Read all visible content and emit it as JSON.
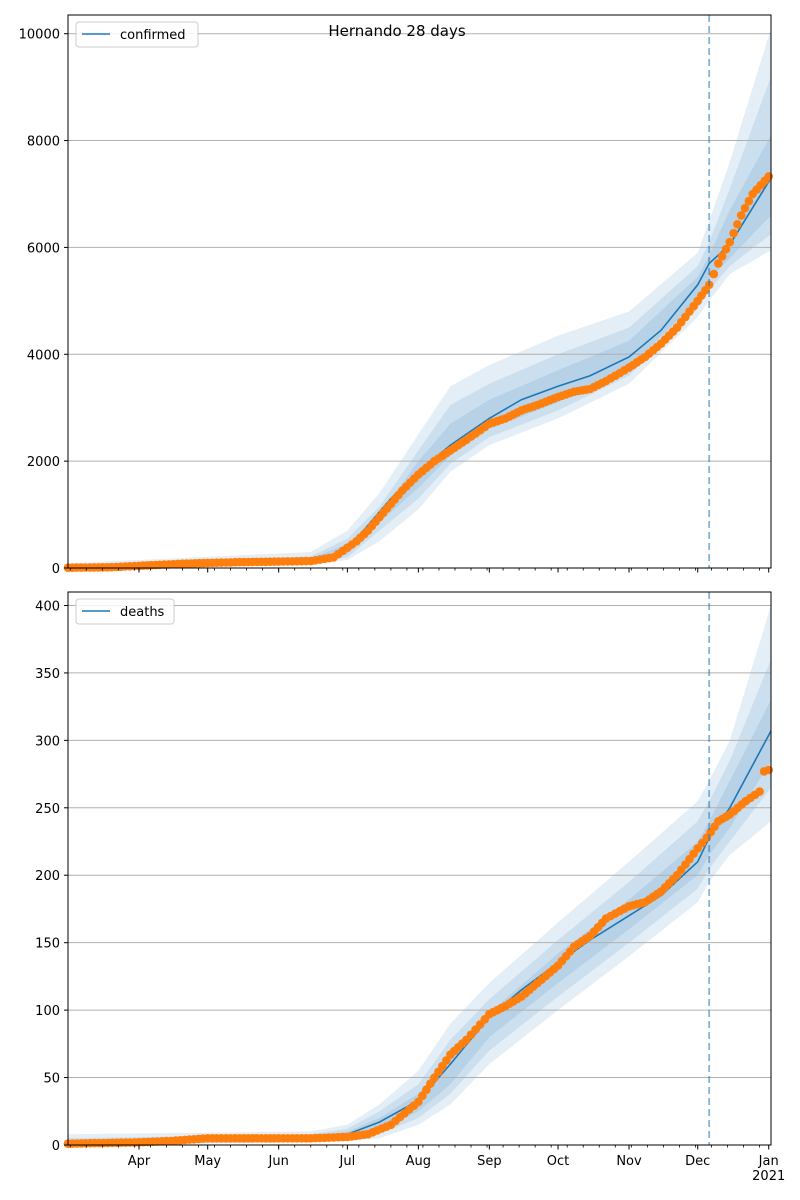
{
  "figure": {
    "title": "Hernando 28 days"
  },
  "colors": {
    "model": "#1f77b4",
    "observed": "#ff7f0e",
    "band": "#1f77b4",
    "grid": "#b0b0b0"
  },
  "chart_data": [
    {
      "type": "line",
      "legend": "confirmed",
      "legend_position": "top-left",
      "x_tick_labels": [],
      "xlim": [
        "2020-03-01",
        "2021-01-02"
      ],
      "ylim": [
        0,
        10350
      ],
      "y_ticks": [
        0,
        2000,
        4000,
        6000,
        8000,
        10000
      ],
      "grid": "y",
      "forecast_start": "2020-12-06",
      "model_line": {
        "x": [
          "2020-03-01",
          "2020-04-01",
          "2020-05-01",
          "2020-06-01",
          "2020-06-20",
          "2020-07-01",
          "2020-07-10",
          "2020-07-20",
          "2020-08-01",
          "2020-08-15",
          "2020-09-01",
          "2020-09-15",
          "2020-10-01",
          "2020-10-15",
          "2020-11-01",
          "2020-11-15",
          "2020-12-01",
          "2020-12-06",
          "2020-12-15",
          "2021-01-02"
        ],
        "y": [
          10,
          40,
          90,
          120,
          150,
          350,
          800,
          1300,
          1800,
          2300,
          2800,
          3150,
          3400,
          3600,
          3950,
          4450,
          5300,
          5700,
          6050,
          7300
        ]
      },
      "bands": [
        {
          "x": [
            "2020-03-01",
            "2020-06-15",
            "2020-07-01",
            "2020-07-15",
            "2020-08-01",
            "2020-08-15",
            "2020-09-01",
            "2020-10-01",
            "2020-11-01",
            "2020-12-01",
            "2020-12-06",
            "2020-12-15",
            "2021-01-02"
          ],
          "lower": [
            0,
            60,
            150,
            500,
            1100,
            1800,
            2300,
            2800,
            3450,
            4700,
            5000,
            5500,
            5950
          ],
          "upper": [
            90,
            300,
            700,
            1400,
            2500,
            3400,
            3800,
            4350,
            4800,
            5900,
            6500,
            7600,
            10100
          ]
        },
        {
          "x": [
            "2020-03-01",
            "2020-06-15",
            "2020-07-01",
            "2020-07-15",
            "2020-08-01",
            "2020-08-15",
            "2020-09-01",
            "2020-10-01",
            "2020-11-01",
            "2020-12-01",
            "2020-12-06",
            "2020-12-15",
            "2021-01-02"
          ],
          "lower": [
            0,
            80,
            200,
            700,
            1300,
            1950,
            2450,
            2950,
            3600,
            4850,
            5200,
            5650,
            6250
          ],
          "upper": [
            60,
            220,
            550,
            1150,
            2200,
            3050,
            3450,
            4000,
            4500,
            5650,
            6100,
            7100,
            9200
          ]
        },
        {
          "x": [
            "2020-03-01",
            "2020-06-15",
            "2020-07-01",
            "2020-07-15",
            "2020-08-01",
            "2020-08-15",
            "2020-09-01",
            "2020-10-01",
            "2020-11-01",
            "2020-12-01",
            "2020-12-06",
            "2020-12-15",
            "2021-01-02"
          ],
          "lower": [
            0,
            100,
            260,
            850,
            1500,
            2100,
            2600,
            3100,
            3750,
            5000,
            5400,
            5800,
            6600
          ],
          "upper": [
            40,
            180,
            450,
            1000,
            2000,
            2700,
            3150,
            3700,
            4250,
            5450,
            5850,
            6700,
            8100
          ]
        }
      ],
      "observed": {
        "x": [
          "2020-03-01",
          "2020-03-20",
          "2020-04-01",
          "2020-04-10",
          "2020-04-20",
          "2020-05-01",
          "2020-05-15",
          "2020-06-01",
          "2020-06-15",
          "2020-06-25",
          "2020-07-01",
          "2020-07-05",
          "2020-07-10",
          "2020-07-15",
          "2020-07-20",
          "2020-07-25",
          "2020-08-01",
          "2020-08-08",
          "2020-08-15",
          "2020-08-22",
          "2020-09-01",
          "2020-09-08",
          "2020-09-15",
          "2020-09-22",
          "2020-10-01",
          "2020-10-08",
          "2020-10-15",
          "2020-10-22",
          "2020-11-01",
          "2020-11-08",
          "2020-11-15",
          "2020-11-22",
          "2020-12-01",
          "2020-12-06",
          "2020-12-10",
          "2020-12-15",
          "2020-12-20",
          "2020-12-25",
          "2021-01-01"
        ],
        "y": [
          5,
          15,
          40,
          60,
          80,
          95,
          110,
          120,
          130,
          200,
          380,
          500,
          700,
          950,
          1200,
          1450,
          1750,
          2000,
          2200,
          2400,
          2700,
          2800,
          2950,
          3050,
          3200,
          3300,
          3350,
          3500,
          3750,
          3950,
          4200,
          4500,
          5000,
          5300,
          5700,
          6100,
          6600,
          7000,
          7330
        ]
      }
    },
    {
      "type": "line",
      "legend": "deaths",
      "legend_position": "top-left",
      "x_tick_labels": [
        "Apr",
        "May",
        "Jun",
        "Jul",
        "Aug",
        "Sep",
        "Oct",
        "Nov",
        "Dec",
        "Jan\n2021"
      ],
      "xlim": [
        "2020-03-01",
        "2021-01-02"
      ],
      "ylim": [
        0,
        410
      ],
      "y_ticks": [
        0,
        50,
        100,
        150,
        200,
        250,
        300,
        350,
        400
      ],
      "grid": "y",
      "forecast_start": "2020-12-06",
      "model_line": {
        "x": [
          "2020-03-01",
          "2020-04-15",
          "2020-05-15",
          "2020-06-15",
          "2020-07-01",
          "2020-07-15",
          "2020-08-01",
          "2020-08-15",
          "2020-09-01",
          "2020-09-15",
          "2020-10-01",
          "2020-10-15",
          "2020-11-01",
          "2020-11-15",
          "2020-12-01",
          "2020-12-06",
          "2020-12-15",
          "2021-01-02"
        ],
        "y": [
          1,
          3,
          5,
          6,
          8,
          17,
          33,
          60,
          95,
          115,
          135,
          152,
          170,
          185,
          210,
          228,
          250,
          307
        ]
      },
      "bands": [
        {
          "x": [
            "2020-03-01",
            "2020-06-15",
            "2020-07-01",
            "2020-07-15",
            "2020-08-01",
            "2020-08-15",
            "2020-09-01",
            "2020-10-01",
            "2020-11-01",
            "2020-12-01",
            "2020-12-06",
            "2020-12-15",
            "2021-01-02"
          ],
          "lower": [
            0,
            2,
            3,
            5,
            15,
            30,
            60,
            100,
            140,
            180,
            195,
            215,
            240
          ],
          "upper": [
            8,
            10,
            15,
            30,
            55,
            90,
            120,
            165,
            210,
            255,
            270,
            300,
            400
          ]
        },
        {
          "x": [
            "2020-03-01",
            "2020-06-15",
            "2020-07-01",
            "2020-07-15",
            "2020-08-01",
            "2020-08-15",
            "2020-09-01",
            "2020-10-01",
            "2020-11-01",
            "2020-12-01",
            "2020-12-06",
            "2020-12-15",
            "2021-01-02"
          ],
          "lower": [
            0,
            3,
            5,
            8,
            20,
            38,
            70,
            110,
            150,
            190,
            205,
            225,
            265
          ],
          "upper": [
            5,
            8,
            12,
            25,
            45,
            78,
            108,
            152,
            195,
            240,
            255,
            285,
            360
          ]
        },
        {
          "x": [
            "2020-03-01",
            "2020-06-15",
            "2020-07-01",
            "2020-07-15",
            "2020-08-01",
            "2020-08-15",
            "2020-09-01",
            "2020-10-01",
            "2020-11-01",
            "2020-12-01",
            "2020-12-06",
            "2020-12-15",
            "2021-01-02"
          ],
          "lower": [
            0,
            4,
            6,
            11,
            25,
            45,
            80,
            120,
            160,
            200,
            215,
            235,
            285
          ],
          "upper": [
            3,
            6,
            10,
            20,
            38,
            68,
            98,
            142,
            182,
            225,
            240,
            270,
            330
          ]
        }
      ],
      "observed": {
        "x": [
          "2020-03-01",
          "2020-04-01",
          "2020-04-15",
          "2020-05-01",
          "2020-05-15",
          "2020-06-01",
          "2020-06-15",
          "2020-07-01",
          "2020-07-10",
          "2020-07-20",
          "2020-08-01",
          "2020-08-08",
          "2020-08-15",
          "2020-08-22",
          "2020-09-01",
          "2020-09-08",
          "2020-09-15",
          "2020-09-22",
          "2020-10-01",
          "2020-10-08",
          "2020-10-15",
          "2020-10-22",
          "2020-11-01",
          "2020-11-08",
          "2020-11-15",
          "2020-11-22",
          "2020-12-01",
          "2020-12-05",
          "2020-12-10",
          "2020-12-15",
          "2020-12-22",
          "2020-12-28",
          "2020-12-30",
          "2021-01-01"
        ],
        "y": [
          1,
          2,
          3,
          5,
          5,
          5,
          5,
          6,
          8,
          15,
          32,
          50,
          67,
          78,
          97,
          103,
          110,
          120,
          133,
          147,
          155,
          168,
          177,
          180,
          188,
          200,
          220,
          228,
          240,
          245,
          255,
          262,
          277,
          278
        ]
      }
    }
  ]
}
